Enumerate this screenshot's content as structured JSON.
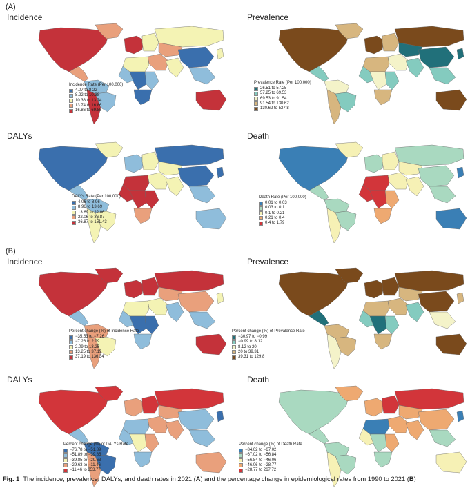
{
  "section_a": "(A)",
  "section_b": "(B)",
  "panels": [
    {
      "title": "Incidence",
      "scheme": "rate",
      "legend_title": "Incidence Rate (Per 100,000)",
      "items": [
        "4.07 to 8.22",
        "8.22 to 10.38",
        "10.38 to 13.74",
        "13.74 to 16.86",
        "16.86 to 69.85"
      ],
      "palette": [
        "#3a6fad",
        "#8fbddb",
        "#f4f3b4",
        "#e9a07c",
        "#c4323a"
      ]
    },
    {
      "title": "Prevalence",
      "scheme": "prev",
      "legend_title": "Prevalence Rate (Per 100,000)",
      "items": [
        "26.51 to 57.25",
        "57.25 to 69.53",
        "69.53 to 91.54",
        "91.54 to 130.62",
        "130.62 to 527.8"
      ],
      "palette": [
        "#21707a",
        "#84cbbf",
        "#f4f3c9",
        "#d7b67f",
        "#7a4a1c"
      ]
    },
    {
      "title": "DALYs",
      "scheme": "dalys",
      "legend_title": "DALYs Rate (Per 100,000)",
      "items": [
        "4.06 to 8.96",
        "8.96 to 13.69",
        "13.69 to 22.06",
        "22.06 to 36.87",
        "36.87 to 151.43"
      ],
      "palette": [
        "#3a6fad",
        "#8fbddb",
        "#f4f3b4",
        "#e9a07c",
        "#c4323a"
      ]
    },
    {
      "title": "Death",
      "scheme": "death",
      "legend_title": "Death Rate (Per 100,000)",
      "items": [
        "0.01 to 0.03",
        "0.03 to 0.1",
        "0.1 to 0.21",
        "0.21 to 0.4",
        "0.4 to 1.79"
      ],
      "palette": [
        "#3a7fb5",
        "#a9d9c0",
        "#f6f1b5",
        "#eea971",
        "#d2353a"
      ]
    },
    {
      "title": "Incidence",
      "scheme": "pct_inc",
      "legend_title": "Percent change (%) of Incidence Rate",
      "items": [
        "−35.53 to −7.26",
        "−7.26 to 2.09",
        "2.09 to 13.25",
        "13.25 to 37.19",
        "37.19 to 136.34"
      ],
      "palette": [
        "#3a6fad",
        "#8fbddb",
        "#f4f3b4",
        "#e9a07c",
        "#c4323a"
      ]
    },
    {
      "title": "Prevalence",
      "scheme": "pct_prev",
      "legend_title": "Percent change (%) of Prevalence Rate",
      "items": [
        "−30.97 to −0.99",
        "−0.99 to 8.12",
        "8.12 to 20",
        "20 to 39.31",
        "39.31 to 129.8"
      ],
      "palette": [
        "#21707a",
        "#84cbbf",
        "#f4f3c9",
        "#d7b67f",
        "#7a4a1c"
      ]
    },
    {
      "title": "DALYs",
      "scheme": "pct_dalys",
      "legend_title": "Percent change (%) of DALYs Rate",
      "items": [
        "−76.78 to −51.89",
        "−51.89 to −39.85",
        "−39.85 to −29.63",
        "−29.63 to −11.46",
        "−11.46 to 253.77"
      ],
      "palette": [
        "#3a6fad",
        "#8fbddb",
        "#f4f3b4",
        "#e9a07c",
        "#d2353a"
      ]
    },
    {
      "title": "Death",
      "scheme": "pct_death",
      "legend_title": "Percent change (%) of Death Rate",
      "items": [
        "−84.02 to −67.02",
        "−67.02 to −56.84",
        "−56.84 to −46.06",
        "−46.06 to −28.77",
        "−28.77 to 267.72"
      ],
      "palette": [
        "#3a7fb5",
        "#a9d9c0",
        "#f6f1b5",
        "#eea971",
        "#d2353a"
      ]
    }
  ],
  "region_classes": {
    "rate": {
      "north_america": 4,
      "greenland": 3,
      "central_america": 3,
      "south_america_north": 1,
      "brazil": 1,
      "south_america_south": 4,
      "western_europe": 4,
      "eastern_europe": 2,
      "russia": 2,
      "middle_east": 3,
      "central_asia": 3,
      "north_africa": 2,
      "west_africa": 1,
      "central_africa": 0,
      "east_africa": 1,
      "southern_africa": 0,
      "south_asia": 2,
      "china": 0,
      "southeast_asia": 1,
      "japan": 2,
      "australia": 4
    },
    "prev": {
      "north_america": 4,
      "greenland": 3,
      "central_america": 1,
      "south_america_north": 2,
      "brazil": 1,
      "south_america_south": 3,
      "western_europe": 4,
      "eastern_europe": 3,
      "russia": 4,
      "middle_east": 2,
      "central_asia": 0,
      "north_africa": 3,
      "west_africa": 1,
      "central_africa": 2,
      "east_africa": 1,
      "southern_africa": 3,
      "south_asia": 1,
      "china": 0,
      "southeast_asia": 1,
      "japan": 0,
      "australia": 4
    },
    "dalys": {
      "north_america": 0,
      "greenland": 2,
      "central_america": 1,
      "south_america_north": 1,
      "brazil": 2,
      "south_america_south": 2,
      "western_europe": 1,
      "eastern_europe": 2,
      "russia": 0,
      "middle_east": 2,
      "central_asia": 2,
      "north_africa": 4,
      "west_africa": 4,
      "central_africa": 4,
      "east_africa": 4,
      "southern_africa": 3,
      "south_asia": 2,
      "china": 0,
      "southeast_asia": 1,
      "japan": 0,
      "australia": 1
    },
    "death": {
      "north_america": 0,
      "greenland": 2,
      "central_america": 1,
      "south_america_north": 1,
      "brazil": 1,
      "south_america_south": 2,
      "western_europe": 1,
      "eastern_europe": 2,
      "russia": 1,
      "middle_east": 2,
      "central_asia": 2,
      "north_africa": 4,
      "west_africa": 4,
      "central_africa": 4,
      "east_africa": 3,
      "southern_africa": 3,
      "south_asia": 2,
      "china": 1,
      "southeast_asia": 1,
      "japan": 0,
      "australia": 0
    },
    "pct_inc": {
      "north_america": 4,
      "greenland": 4,
      "central_america": 1,
      "south_america_north": 3,
      "brazil": 2,
      "south_america_south": 3,
      "western_europe": 4,
      "eastern_europe": 4,
      "russia": 4,
      "middle_east": 2,
      "central_asia": 3,
      "north_africa": 2,
      "west_africa": 1,
      "central_africa": 0,
      "east_africa": 0,
      "southern_africa": 1,
      "south_asia": 1,
      "china": 3,
      "southeast_asia": 1,
      "japan": 2,
      "australia": 4
    },
    "pct_prev": {
      "north_america": 4,
      "greenland": 4,
      "central_america": 0,
      "south_america_north": 3,
      "brazil": 3,
      "south_america_south": 2,
      "western_europe": 4,
      "eastern_europe": 4,
      "russia": 4,
      "middle_east": 3,
      "central_asia": 3,
      "north_africa": 3,
      "west_africa": 1,
      "central_africa": 0,
      "east_africa": 1,
      "southern_africa": 3,
      "south_asia": 1,
      "china": 4,
      "southeast_asia": 2,
      "japan": 3,
      "australia": 4
    },
    "pct_dalys": {
      "north_america": 4,
      "greenland": 4,
      "central_america": 1,
      "south_america_north": 0,
      "brazil": 0,
      "south_america_south": 3,
      "western_europe": 3,
      "eastern_europe": 4,
      "russia": 4,
      "middle_east": 3,
      "central_asia": 3,
      "north_africa": 1,
      "west_africa": 1,
      "central_africa": 2,
      "east_africa": 3,
      "southern_africa": 1,
      "south_asia": 3,
      "china": 1,
      "southeast_asia": 1,
      "japan": 0,
      "australia": 3
    },
    "pct_death": {
      "north_america": 1,
      "greenland": 3,
      "central_america": 1,
      "south_america_north": 1,
      "brazil": 1,
      "south_america_south": 2,
      "western_europe": 3,
      "eastern_europe": 4,
      "russia": 4,
      "middle_east": 3,
      "central_asia": 3,
      "north_africa": 0,
      "west_africa": 2,
      "central_africa": 1,
      "east_africa": 3,
      "southern_africa": 1,
      "south_asia": 3,
      "china": 3,
      "southeast_asia": 1,
      "japan": 0,
      "australia": 2
    }
  },
  "caption": {
    "label": "Fig. 1",
    "text_1": "The incidence, prevalence, DALYs, and death rates in 2021 (",
    "a": "A",
    "text_2": ") and the percentage change in epidemiological rates from 1990 to 2021 (",
    "b": "B",
    "text_3": ")"
  }
}
